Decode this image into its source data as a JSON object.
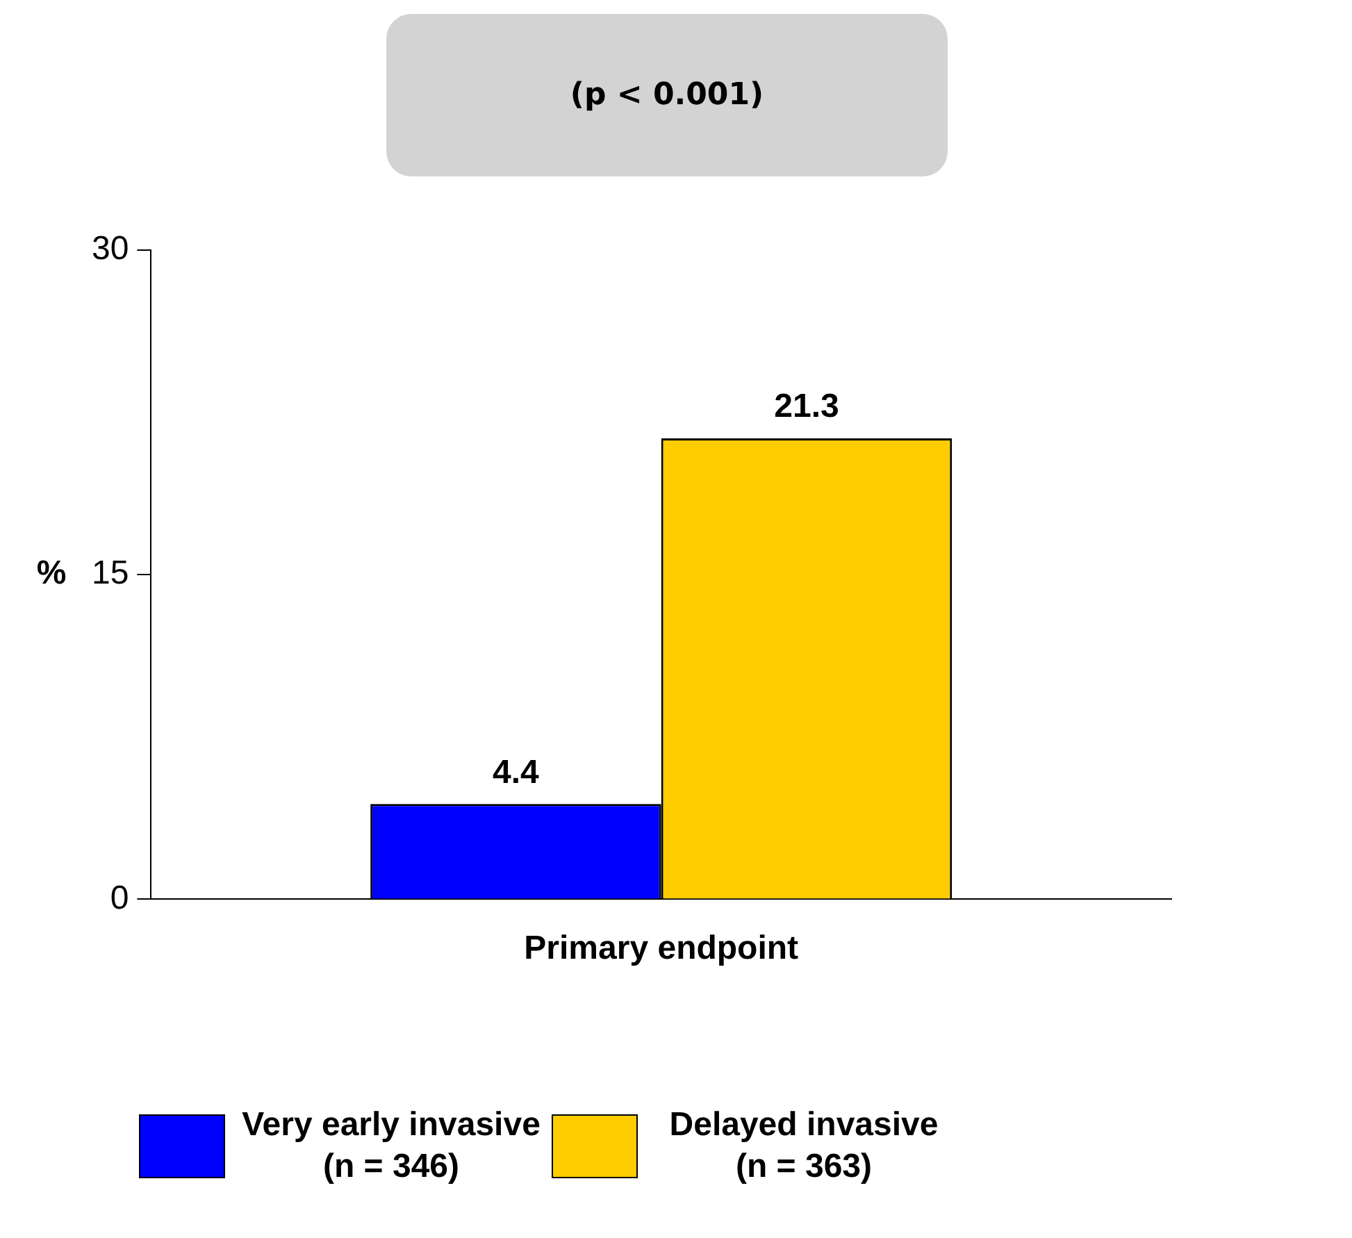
{
  "chart_data": {
    "type": "bar",
    "title": "(p < 0.001)",
    "ylabel": "%",
    "categories": [
      "Primary endpoint"
    ],
    "series": [
      {
        "name": "Very early invasive (n = 346)",
        "color": "#0000ff",
        "values": [
          4.4
        ]
      },
      {
        "name": "Delayed invasive (n = 363)",
        "color": "#ffcc00",
        "values": [
          21.3
        ]
      }
    ],
    "ylim": [
      0,
      30
    ],
    "yticks": [
      0,
      15,
      30
    ],
    "grid": false,
    "legend": "bottom",
    "data_labels": true
  }
}
